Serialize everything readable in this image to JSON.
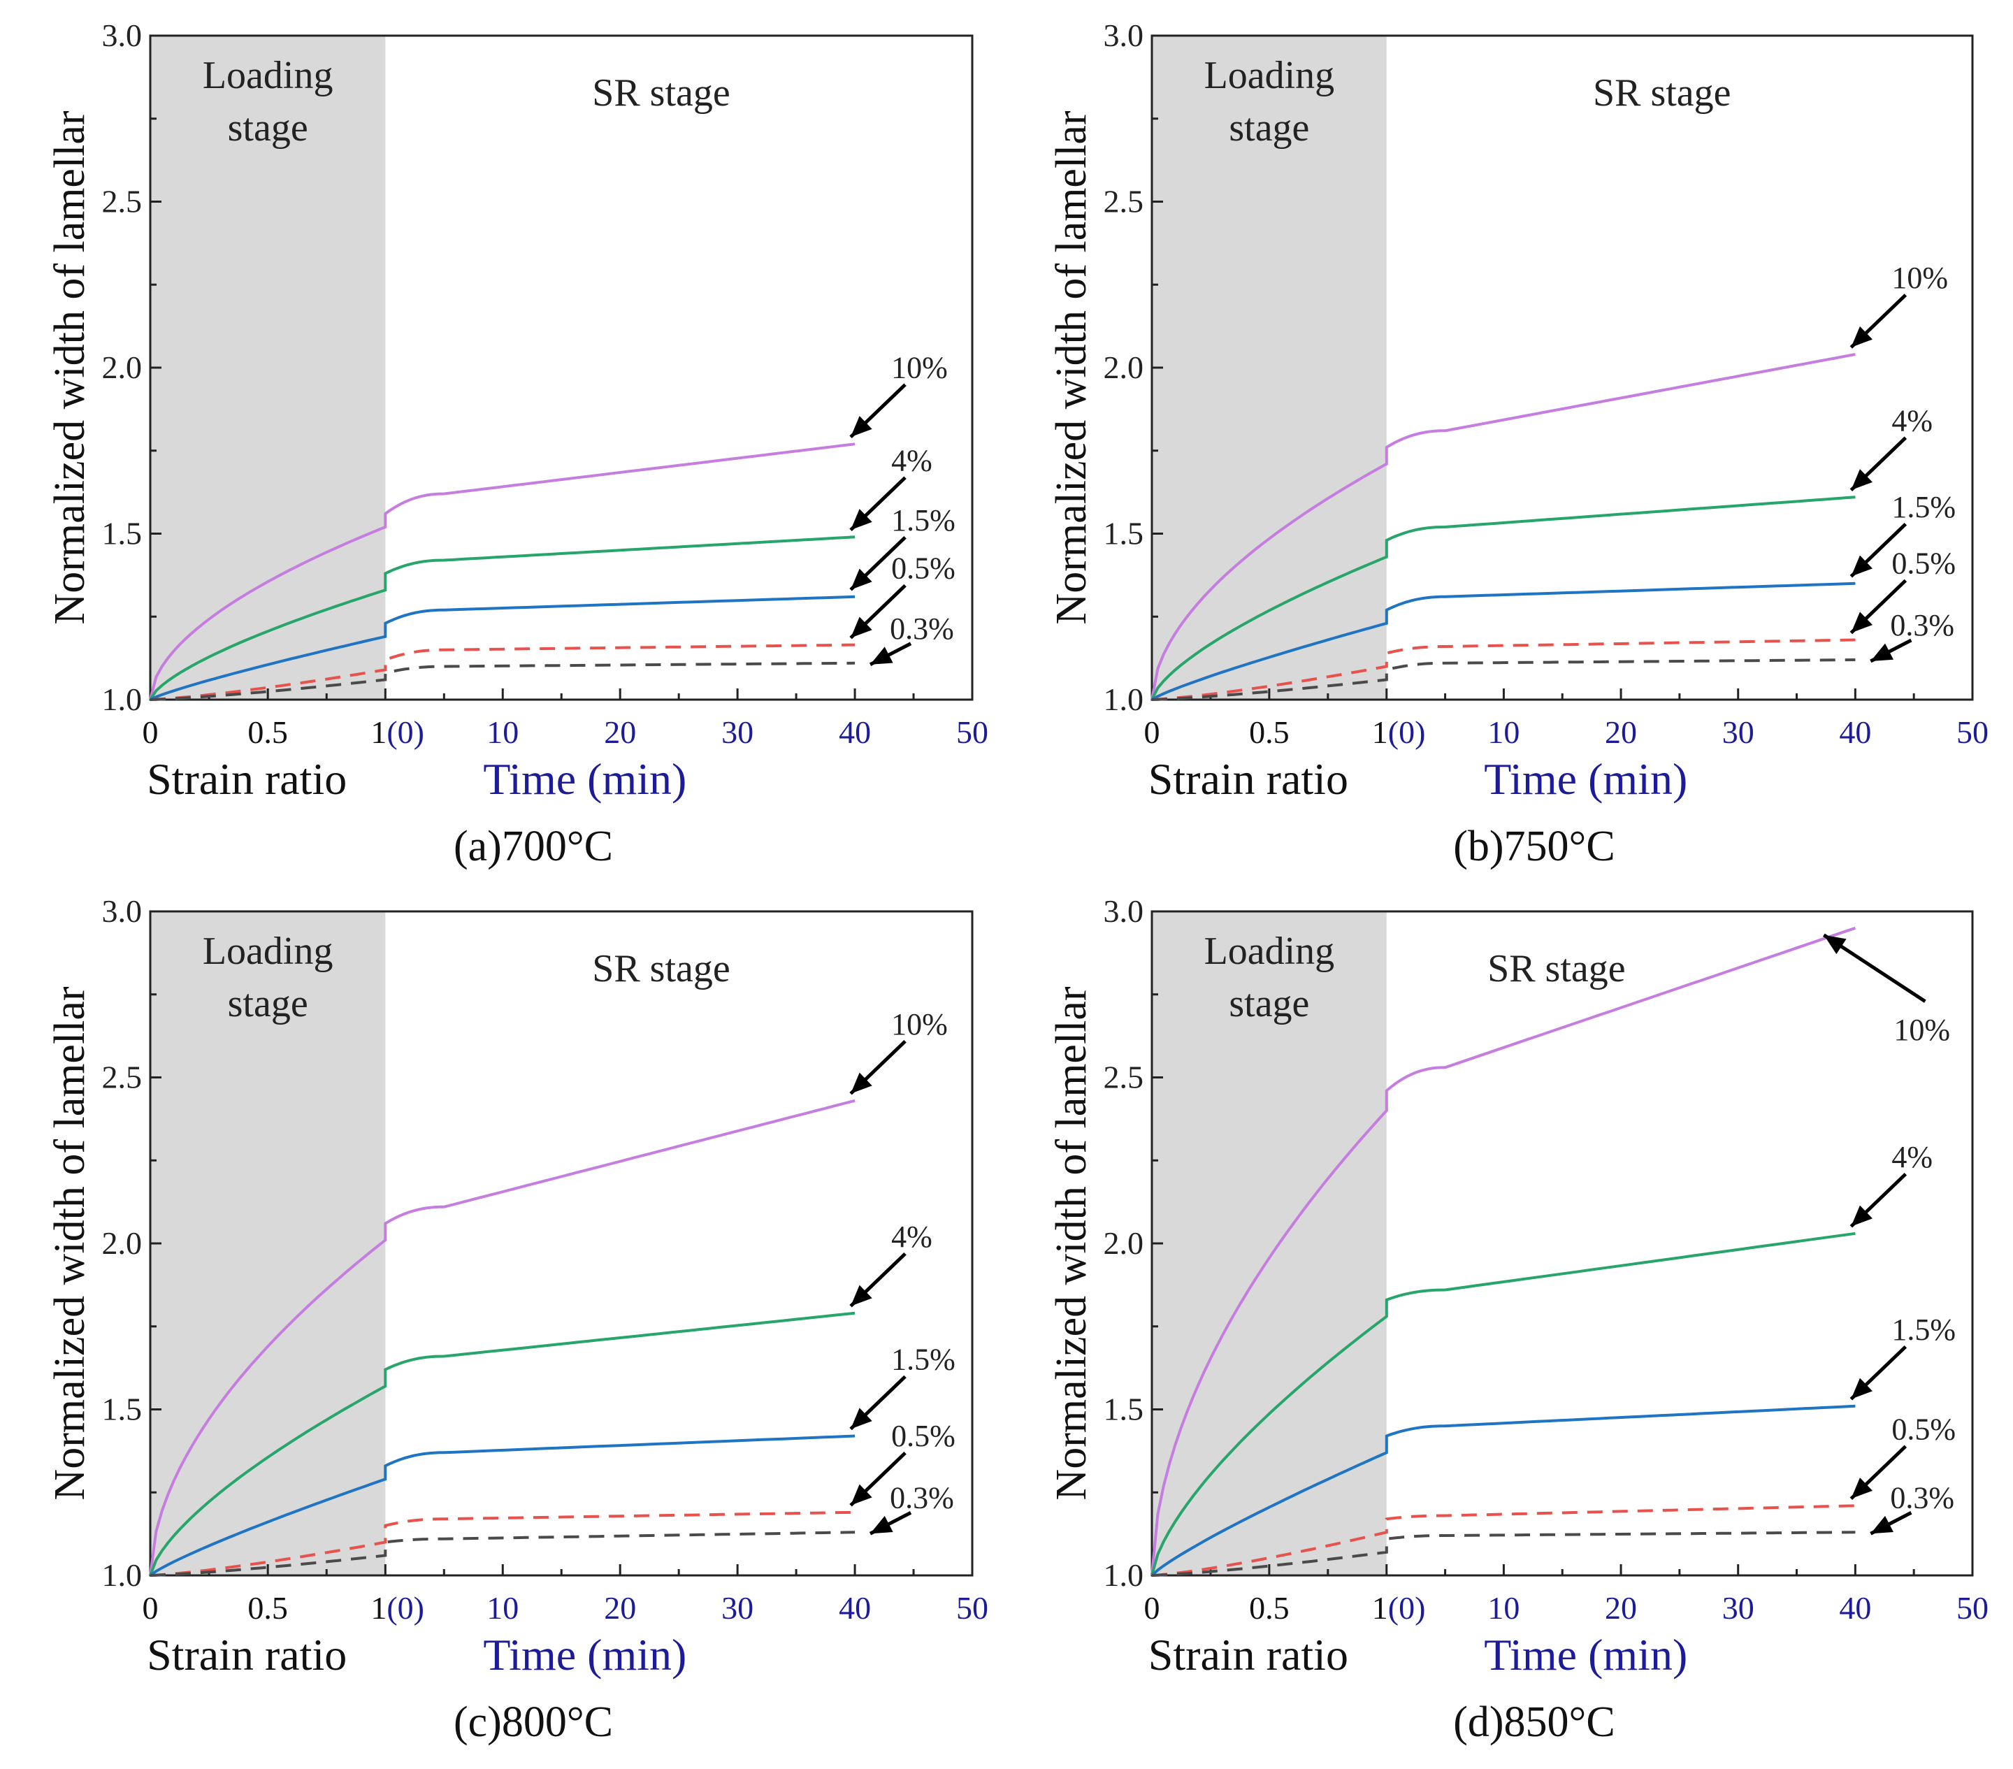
{
  "colors": {
    "10%": "#c57ee0",
    "4%": "#27a56a",
    "1.5%": "#1f74c4",
    "0.5%": "#e8524c",
    "0.3%": "#4a4a4a",
    "time_axis": "#1c1c9a",
    "loading_bg": "#d9d9d9"
  },
  "chart_data": [
    {
      "type": "line",
      "title": "(a)700°C",
      "ylabel": "Normalized width of lamellar",
      "xlabel_strain": "Strain ratio",
      "xlabel_time": "Time (min)",
      "ylim": [
        1.0,
        3.0
      ],
      "yticks": [
        "1.0",
        "1.5",
        "2.0",
        "2.5",
        "3.0"
      ],
      "strain_ticks": [
        "0",
        "0.5",
        "1"
      ],
      "time_ticks": [
        "(0)",
        "10",
        "20",
        "30",
        "40",
        "50"
      ],
      "region_labels": {
        "loading": [
          "Loading",
          "stage"
        ],
        "sr": "SR stage"
      },
      "series": [
        {
          "name": "10%",
          "loading_end": 1.52,
          "sr_start": 1.56,
          "sr_t5": 1.62,
          "sr_t40": 1.77
        },
        {
          "name": "4%",
          "loading_end": 1.33,
          "sr_start": 1.38,
          "sr_t5": 1.42,
          "sr_t40": 1.49
        },
        {
          "name": "1.5%",
          "loading_end": 1.19,
          "sr_start": 1.23,
          "sr_t5": 1.27,
          "sr_t40": 1.31
        },
        {
          "name": "0.5%",
          "loading_end": 1.09,
          "sr_start": 1.12,
          "sr_t5": 1.15,
          "sr_t40": 1.165
        },
        {
          "name": "0.3%",
          "loading_end": 1.06,
          "sr_start": 1.08,
          "sr_t5": 1.1,
          "sr_t40": 1.11
        }
      ]
    },
    {
      "type": "line",
      "title": "(b)750°C",
      "ylabel": "Normalized width of lamellar",
      "xlabel_strain": "Strain ratio",
      "xlabel_time": "Time (min)",
      "ylim": [
        1.0,
        3.0
      ],
      "yticks": [
        "1.0",
        "1.5",
        "2.0",
        "2.5",
        "3.0"
      ],
      "strain_ticks": [
        "0",
        "0.5",
        "1"
      ],
      "time_ticks": [
        "(0)",
        "10",
        "20",
        "30",
        "40",
        "50"
      ],
      "region_labels": {
        "loading": [
          "Loading",
          "stage"
        ],
        "sr": "SR stage"
      },
      "series": [
        {
          "name": "10%",
          "loading_end": 1.71,
          "sr_start": 1.76,
          "sr_t5": 1.81,
          "sr_t40": 2.04
        },
        {
          "name": "4%",
          "loading_end": 1.43,
          "sr_start": 1.48,
          "sr_t5": 1.52,
          "sr_t40": 1.61
        },
        {
          "name": "1.5%",
          "loading_end": 1.23,
          "sr_start": 1.27,
          "sr_t5": 1.31,
          "sr_t40": 1.35
        },
        {
          "name": "0.5%",
          "loading_end": 1.1,
          "sr_start": 1.14,
          "sr_t5": 1.16,
          "sr_t40": 1.18
        },
        {
          "name": "0.3%",
          "loading_end": 1.06,
          "sr_start": 1.09,
          "sr_t5": 1.11,
          "sr_t40": 1.12
        }
      ]
    },
    {
      "type": "line",
      "title": "(c)800°C",
      "ylabel": "Normalized width of lamellar",
      "xlabel_strain": "Strain ratio",
      "xlabel_time": "Time (min)",
      "ylim": [
        1.0,
        3.0
      ],
      "yticks": [
        "1.0",
        "1.5",
        "2.0",
        "2.5",
        "3.0"
      ],
      "strain_ticks": [
        "0",
        "0.5",
        "1"
      ],
      "time_ticks": [
        "(0)",
        "10",
        "20",
        "30",
        "40",
        "50"
      ],
      "region_labels": {
        "loading": [
          "Loading",
          "stage"
        ],
        "sr": "SR stage"
      },
      "series": [
        {
          "name": "10%",
          "loading_end": 2.01,
          "sr_start": 2.06,
          "sr_t5": 2.11,
          "sr_t40": 2.43
        },
        {
          "name": "4%",
          "loading_end": 1.57,
          "sr_start": 1.62,
          "sr_t5": 1.66,
          "sr_t40": 1.79
        },
        {
          "name": "1.5%",
          "loading_end": 1.29,
          "sr_start": 1.33,
          "sr_t5": 1.37,
          "sr_t40": 1.42
        },
        {
          "name": "0.5%",
          "loading_end": 1.1,
          "sr_start": 1.15,
          "sr_t5": 1.17,
          "sr_t40": 1.19
        },
        {
          "name": "0.3%",
          "loading_end": 1.06,
          "sr_start": 1.1,
          "sr_t5": 1.11,
          "sr_t40": 1.13
        }
      ]
    },
    {
      "type": "line",
      "title": "(d)850°C",
      "ylabel": "Normalized width of lamellar",
      "xlabel_strain": "Strain ratio",
      "xlabel_time": "Time (min)",
      "ylim": [
        1.0,
        3.0
      ],
      "yticks": [
        "1.0",
        "1.5",
        "2.0",
        "2.5",
        "3.0"
      ],
      "strain_ticks": [
        "0",
        "0.5",
        "1"
      ],
      "time_ticks": [
        "(0)",
        "10",
        "20",
        "30",
        "40",
        "50"
      ],
      "region_labels": {
        "loading": [
          "Loading",
          "stage"
        ],
        "sr": "SR stage"
      },
      "series": [
        {
          "name": "10%",
          "loading_end": 2.4,
          "sr_start": 2.46,
          "sr_t5": 2.53,
          "sr_t40": 2.95
        },
        {
          "name": "4%",
          "loading_end": 1.78,
          "sr_start": 1.83,
          "sr_t5": 1.86,
          "sr_t40": 2.03
        },
        {
          "name": "1.5%",
          "loading_end": 1.37,
          "sr_start": 1.42,
          "sr_t5": 1.45,
          "sr_t40": 1.51
        },
        {
          "name": "0.5%",
          "loading_end": 1.13,
          "sr_start": 1.17,
          "sr_t5": 1.18,
          "sr_t40": 1.21
        },
        {
          "name": "0.3%",
          "loading_end": 1.07,
          "sr_start": 1.11,
          "sr_t5": 1.12,
          "sr_t40": 1.13
        }
      ]
    }
  ]
}
